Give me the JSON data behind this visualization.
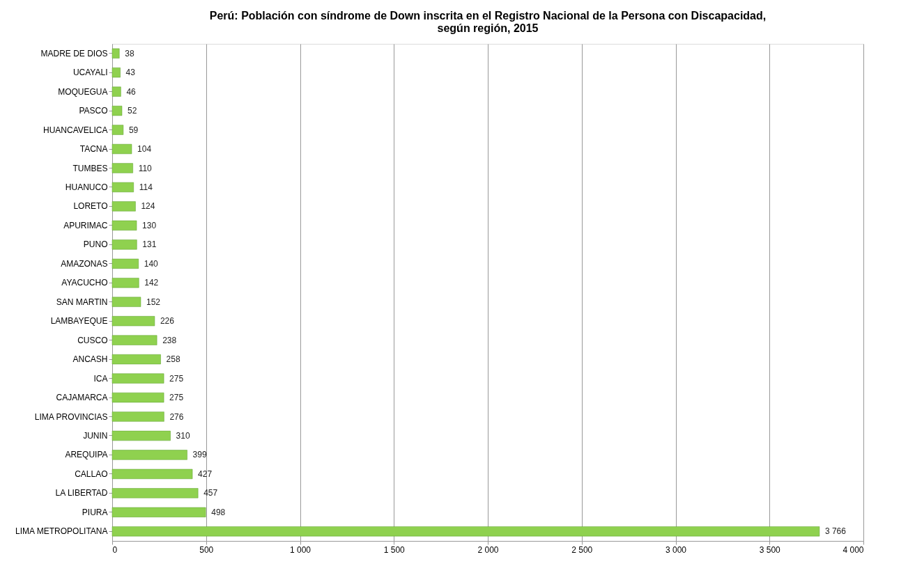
{
  "chart_data": {
    "type": "bar",
    "orientation": "horizontal",
    "title": "Perú: Población con síndrome de Down inscrita en el Registro Nacional de la Persona con Discapacidad,\nsegún región, 2015",
    "categories": [
      "MADRE DE DIOS",
      "UCAYALI",
      "MOQUEGUA",
      "PASCO",
      "HUANCAVELICA",
      "TACNA",
      "TUMBES",
      "HUANUCO",
      "LORETO",
      "APURIMAC",
      "PUNO",
      "AMAZONAS",
      "AYACUCHO",
      "SAN MARTIN",
      "LAMBAYEQUE",
      "CUSCO",
      "ANCASH",
      "ICA",
      "CAJAMARCA",
      "LIMA PROVINCIAS",
      "JUNIN",
      "AREQUIPA",
      "CALLAO",
      "LA LIBERTAD",
      "PIURA",
      "LIMA METROPOLITANA"
    ],
    "values": [
      38,
      43,
      46,
      52,
      59,
      104,
      110,
      114,
      124,
      130,
      131,
      140,
      142,
      152,
      226,
      238,
      258,
      275,
      275,
      276,
      310,
      399,
      427,
      457,
      498,
      3766
    ],
    "value_labels": [
      "38",
      "43",
      "46",
      "52",
      "59",
      "104",
      "110",
      "114",
      "124",
      "130",
      "131",
      "140",
      "142",
      "152",
      "226",
      "238",
      "258",
      "275",
      "275",
      "276",
      "310",
      "399",
      "427",
      "457",
      "498",
      "3 766"
    ],
    "color": "#8fd14f",
    "xlim": [
      0,
      4000
    ],
    "xticks": [
      0,
      500,
      {
        "value": 1000,
        "label": "1 000"
      },
      {
        "value": 1500,
        "label": "1 500"
      },
      {
        "value": 2000,
        "label": "2 000"
      },
      {
        "value": 2500,
        "label": "2 500"
      },
      {
        "value": 3000,
        "label": "3 000"
      },
      {
        "value": 3500,
        "label": "3 500"
      },
      {
        "value": 4000,
        "label": "4 000"
      }
    ],
    "grid": "x"
  }
}
